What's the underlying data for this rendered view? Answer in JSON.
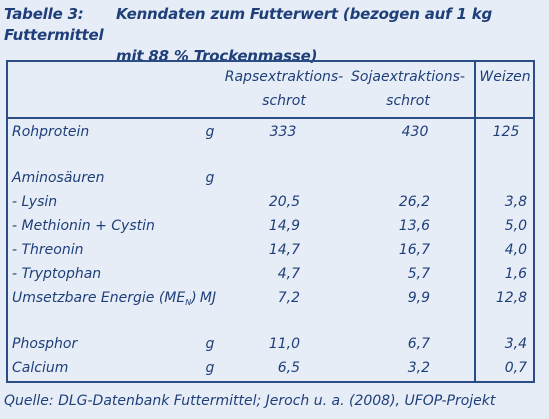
{
  "caption": {
    "label": "Tabelle 3:",
    "title_line1": "Kenndaten zum Futterwert (bezogen auf 1 kg Futtermittel",
    "title_line2": "mit 88 % Trockenmasse)"
  },
  "columns": {
    "col1_line1": "Rapsextraktions-",
    "col1_line2": "schrot",
    "col2_line1": "Sojaextraktions-",
    "col2_line2": "schrot",
    "col3": "Weizen"
  },
  "rows": {
    "rohprotein": {
      "name": "Rohprotein",
      "unit": "g",
      "v1": "333",
      "v2": "430",
      "v3": "125"
    },
    "aminosaeuren": {
      "name": "Aminosäuren",
      "unit": "g"
    },
    "lysin": {
      "name": "- Lysin",
      "v1": "20,5",
      "v2": "26,2",
      "v3": "3,8"
    },
    "methionin": {
      "name": "- Methionin + Cystin",
      "v1": "14,9",
      "v2": "13,6",
      "v3": "5,0"
    },
    "threonin": {
      "name": "- Threonin",
      "v1": "14,7",
      "v2": "16,7",
      "v3": "4,0"
    },
    "tryptophan": {
      "name": "- Tryptophan",
      "v1": "4,7",
      "v2": "5,7",
      "v3": "1,6"
    },
    "energie": {
      "name_main": "Umsetzbare Energie (ME",
      "name_sub": "N",
      "name_close": ")",
      "unit": "MJ",
      "v1": "7,2",
      "v2": "9,9",
      "v3": "12,8"
    },
    "phosphor": {
      "name": "Phosphor",
      "unit": "g",
      "v1": "11,0",
      "v2": "6,7",
      "v3": "3,4"
    },
    "calcium": {
      "name": "Calcium",
      "unit": "g",
      "v1": "6,5",
      "v2": "3,2",
      "v3": "0,7"
    }
  },
  "source": "Quelle: DLG-Datenbank Futtermittel; Jeroch u. a. (2008), UFOP-Projekt"
}
